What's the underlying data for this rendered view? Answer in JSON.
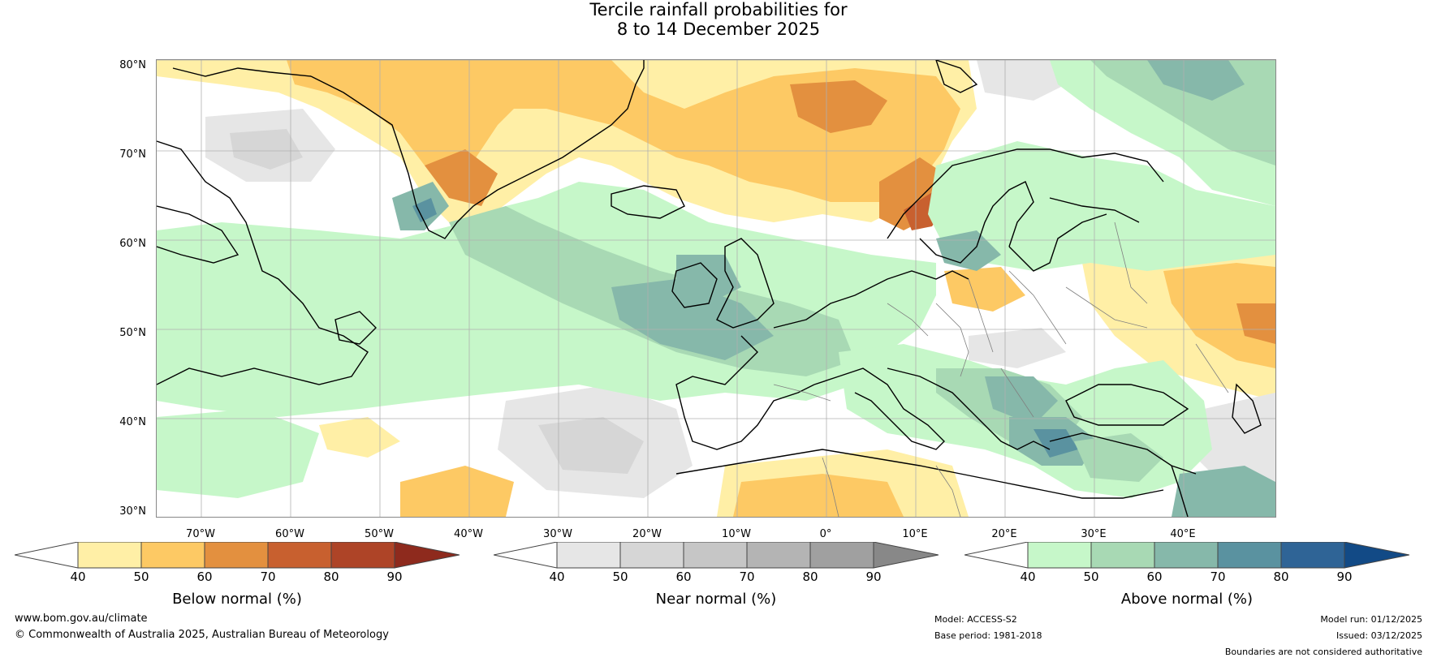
{
  "title": {
    "line1": "Tercile rainfall probabilities for",
    "line2": "8 to 14 December 2025"
  },
  "map": {
    "lat_labels": [
      "80°N",
      "70°N",
      "60°N",
      "50°N",
      "40°N",
      "30°N"
    ],
    "lon_labels": [
      "70°W",
      "60°W",
      "50°W",
      "40°W",
      "30°W",
      "20°W",
      "10°W",
      "0°",
      "10°E",
      "20°E",
      "30°E",
      "40°E"
    ]
  },
  "colorbars": [
    {
      "name": "below",
      "title": "Below normal (%)",
      "ticks": [
        "40",
        "50",
        "60",
        "70",
        "80",
        "90"
      ],
      "colors": [
        "#ffefa6",
        "#fdc964",
        "#e3903f",
        "#c8602f",
        "#ae4427",
        "#8e2a1d"
      ]
    },
    {
      "name": "near",
      "title": "Near normal (%)",
      "ticks": [
        "40",
        "50",
        "60",
        "70",
        "80",
        "90"
      ],
      "colors": [
        "#e6e6e6",
        "#d6d6d6",
        "#c6c6c6",
        "#b4b4b4",
        "#a0a0a0",
        "#888888"
      ]
    },
    {
      "name": "above",
      "title": "Above normal (%)",
      "ticks": [
        "40",
        "50",
        "60",
        "70",
        "80",
        "90"
      ],
      "colors": [
        "#c6f7c9",
        "#a8d9b4",
        "#86b8aa",
        "#5a92a0",
        "#2f6496",
        "#124a86"
      ]
    }
  ],
  "footer": {
    "website": "www.bom.gov.au/climate",
    "copyright": "© Commonwealth of Australia 2025, Australian Bureau of Meteorology",
    "model": "Model: ACCESS-S2",
    "base_period": "Base period: 1981-2018",
    "model_run": "Model run: 01/12/2025",
    "issued": "Issued: 03/12/2025",
    "disclaimer": "Boundaries are not considered authoritative"
  }
}
